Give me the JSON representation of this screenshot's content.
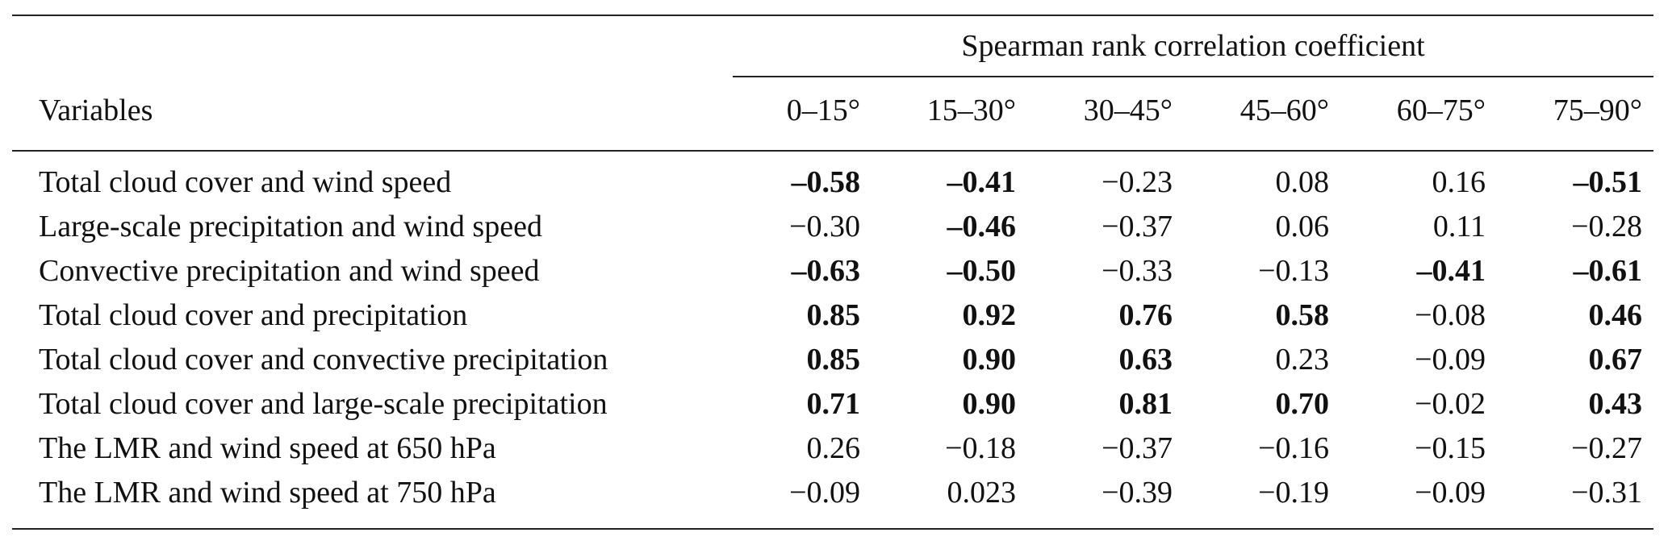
{
  "table": {
    "spanner_label": "Spearman rank correlation coefficient",
    "variables_header": "Variables",
    "columns": [
      "0–15°",
      "15–30°",
      "30–45°",
      "45–60°",
      "60–75°",
      "75–90°"
    ],
    "rows": [
      {
        "label": "Total cloud cover and wind speed",
        "values": [
          "–0.58",
          "–0.41",
          "−0.23",
          "0.08",
          "0.16",
          "–0.51"
        ],
        "bold": [
          true,
          true,
          false,
          false,
          false,
          true
        ]
      },
      {
        "label": "Large-scale precipitation and wind speed",
        "values": [
          "−0.30",
          "–0.46",
          "−0.37",
          "0.06",
          "0.11",
          "−0.28"
        ],
        "bold": [
          false,
          true,
          false,
          false,
          false,
          false
        ]
      },
      {
        "label": "Convective precipitation and wind speed",
        "values": [
          "–0.63",
          "–0.50",
          "−0.33",
          "−0.13",
          "–0.41",
          "–0.61"
        ],
        "bold": [
          true,
          true,
          false,
          false,
          true,
          true
        ]
      },
      {
        "label": "Total cloud cover and precipitation",
        "values": [
          "0.85",
          "0.92",
          "0.76",
          "0.58",
          "−0.08",
          "0.46"
        ],
        "bold": [
          true,
          true,
          true,
          true,
          false,
          true
        ]
      },
      {
        "label": "Total cloud cover and convective precipitation",
        "values": [
          "0.85",
          "0.90",
          "0.63",
          "0.23",
          "−0.09",
          "0.67"
        ],
        "bold": [
          true,
          true,
          true,
          false,
          false,
          true
        ]
      },
      {
        "label": "Total cloud cover and large-scale precipitation",
        "values": [
          "0.71",
          "0.90",
          "0.81",
          "0.70",
          "−0.02",
          "0.43"
        ],
        "bold": [
          true,
          true,
          true,
          true,
          false,
          true
        ]
      },
      {
        "label": "The LMR and wind speed at 650 hPa",
        "values": [
          "0.26",
          "−0.18",
          "−0.37",
          "−0.16",
          "−0.15",
          "−0.27"
        ],
        "bold": [
          false,
          false,
          false,
          false,
          false,
          false
        ]
      },
      {
        "label": "The LMR and wind speed at 750 hPa",
        "values": [
          "−0.09",
          "0.023",
          "−0.39",
          "−0.19",
          "−0.09",
          "−0.31"
        ],
        "bold": [
          false,
          false,
          false,
          false,
          false,
          false
        ]
      }
    ]
  }
}
